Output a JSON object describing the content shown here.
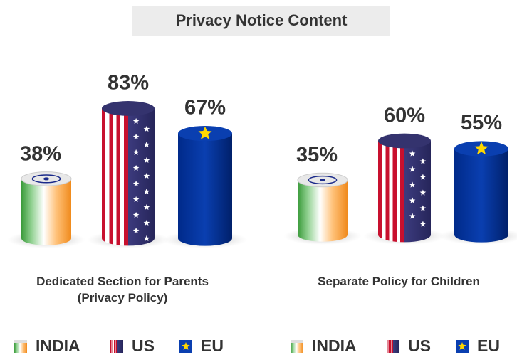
{
  "title": "Privacy Notice Content",
  "chart_data": [
    {
      "type": "bar",
      "categories": [
        "Dedicated Section for Parents (Privacy Policy)"
      ],
      "series": [
        {
          "name": "INDIA",
          "color": "#f7931e",
          "values": [
            38
          ],
          "value_labels": [
            "38%"
          ]
        },
        {
          "name": "US",
          "color": "#3c3b6e",
          "values": [
            83
          ],
          "value_labels": [
            "83%"
          ]
        },
        {
          "name": "EU",
          "color": "#003399",
          "values": [
            67
          ],
          "value_labels": [
            "67%"
          ]
        }
      ]
    },
    {
      "type": "bar",
      "categories": [
        "Separate Policy for Children"
      ],
      "series": [
        {
          "name": "INDIA",
          "color": "#f7931e",
          "values": [
            35
          ],
          "value_labels": [
            "35%"
          ]
        },
        {
          "name": "US",
          "color": "#3c3b6e",
          "values": [
            60
          ],
          "value_labels": [
            "60%"
          ]
        },
        {
          "name": "EU",
          "color": "#003399",
          "values": [
            55
          ],
          "value_labels": [
            "55%"
          ]
        }
      ]
    }
  ]
}
